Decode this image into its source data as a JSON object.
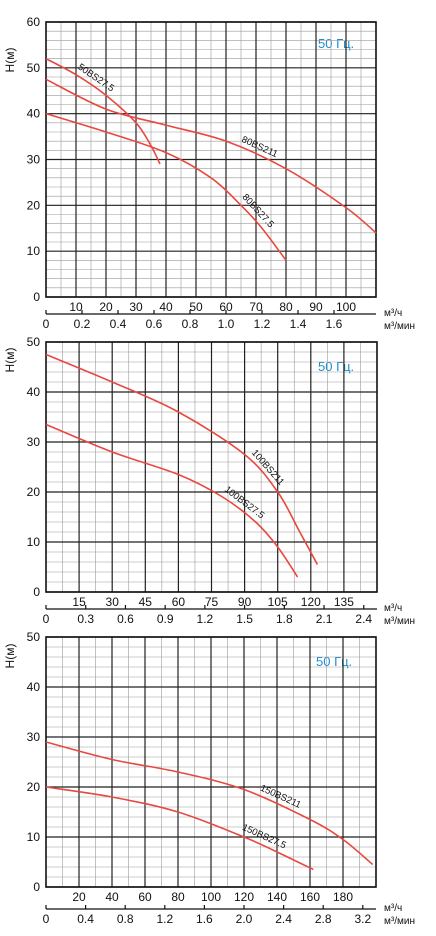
{
  "chart_data": [
    {
      "type": "line",
      "title": "",
      "ylabel": "H(м)",
      "xlabel": "м³/ч",
      "xlabel2": "м³/мин",
      "badge": "50 Гц.",
      "ylim": [
        0,
        60
      ],
      "xlim": [
        0,
        110
      ],
      "x2lim": [
        0,
        1.8333
      ],
      "y_ticks": [
        0,
        10,
        20,
        30,
        40,
        50,
        60
      ],
      "x_ticks": [
        10,
        20,
        30,
        40,
        50,
        60,
        70,
        80,
        90,
        100
      ],
      "x2_ticks": [
        "0",
        "0.2",
        "0.4",
        "0.6",
        "0.8",
        "1.0",
        "1.2",
        "1.4",
        "1.6"
      ],
      "x2_tick_values": [
        0,
        0.2,
        0.4,
        0.6,
        0.8,
        1.0,
        1.2,
        1.4,
        1.6
      ],
      "grid": true,
      "series": [
        {
          "name": "50BS27.5",
          "x": [
            0,
            10,
            20,
            30,
            35,
            38
          ],
          "y": [
            52,
            48.5,
            44,
            38,
            33,
            29
          ]
        },
        {
          "name": "80BS211",
          "x": [
            0,
            20,
            40,
            60,
            80,
            100,
            110
          ],
          "y": [
            47.5,
            41,
            37.5,
            34,
            28,
            19.5,
            14
          ]
        },
        {
          "name": "80BS27.5",
          "x": [
            0,
            20,
            40,
            55,
            65,
            72,
            80
          ],
          "y": [
            40,
            36,
            31.5,
            26,
            20,
            15,
            8
          ]
        }
      ]
    },
    {
      "type": "line",
      "title": "",
      "ylabel": "H(м)",
      "xlabel": "м³/ч",
      "xlabel2": "м³/мин",
      "badge": "50 Гц.",
      "ylim": [
        0,
        50
      ],
      "xlim": [
        0,
        150
      ],
      "x2lim": [
        0,
        2.5
      ],
      "y_ticks": [
        0,
        10,
        20,
        30,
        40,
        50
      ],
      "x_ticks": [
        15,
        30,
        45,
        60,
        75,
        90,
        105,
        120,
        135
      ],
      "x2_ticks": [
        "0",
        "0.3",
        "0.6",
        "0.9",
        "1.2",
        "1.5",
        "1.8",
        "2.1",
        "2.4"
      ],
      "x2_tick_values": [
        0,
        0.3,
        0.6,
        0.9,
        1.2,
        1.5,
        1.8,
        2.1,
        2.4
      ],
      "grid": true,
      "series": [
        {
          "name": "100BS211",
          "x": [
            0,
            30,
            60,
            90,
            105,
            115,
            123
          ],
          "y": [
            47.5,
            42,
            36,
            27.5,
            20,
            12,
            5.5
          ]
        },
        {
          "name": "100BS27.5",
          "x": [
            0,
            30,
            60,
            80,
            95,
            105,
            114
          ],
          "y": [
            33.5,
            28,
            23.5,
            19,
            14,
            9,
            3
          ]
        }
      ]
    },
    {
      "type": "line",
      "title": "",
      "ylabel": "H(м)",
      "xlabel": "м³/ч",
      "xlabel2": "м³/мин",
      "badge": "50 Гц.",
      "ylim": [
        0,
        50
      ],
      "xlim": [
        0,
        200
      ],
      "x2lim": [
        0,
        3.3333
      ],
      "y_ticks": [
        0,
        10,
        20,
        30,
        40,
        50
      ],
      "x_ticks": [
        20,
        40,
        60,
        80,
        100,
        120,
        140,
        160,
        180
      ],
      "x2_ticks": [
        "0",
        "0.4",
        "0.8",
        "1.2",
        "1.6",
        "2.0",
        "2.4",
        "2.8",
        "3.2"
      ],
      "x2_tick_values": [
        0,
        0.4,
        0.8,
        1.2,
        1.6,
        2.0,
        2.4,
        2.8,
        3.2
      ],
      "grid": true,
      "series": [
        {
          "name": "150BS211",
          "x": [
            0,
            40,
            80,
            120,
            160,
            180,
            198
          ],
          "y": [
            29,
            25.5,
            23,
            19.5,
            13.5,
            9.5,
            4.5
          ]
        },
        {
          "name": "150BS27.5",
          "x": [
            0,
            40,
            80,
            120,
            140,
            162
          ],
          "y": [
            20,
            18,
            15,
            10,
            7,
            3.5
          ]
        }
      ]
    }
  ]
}
